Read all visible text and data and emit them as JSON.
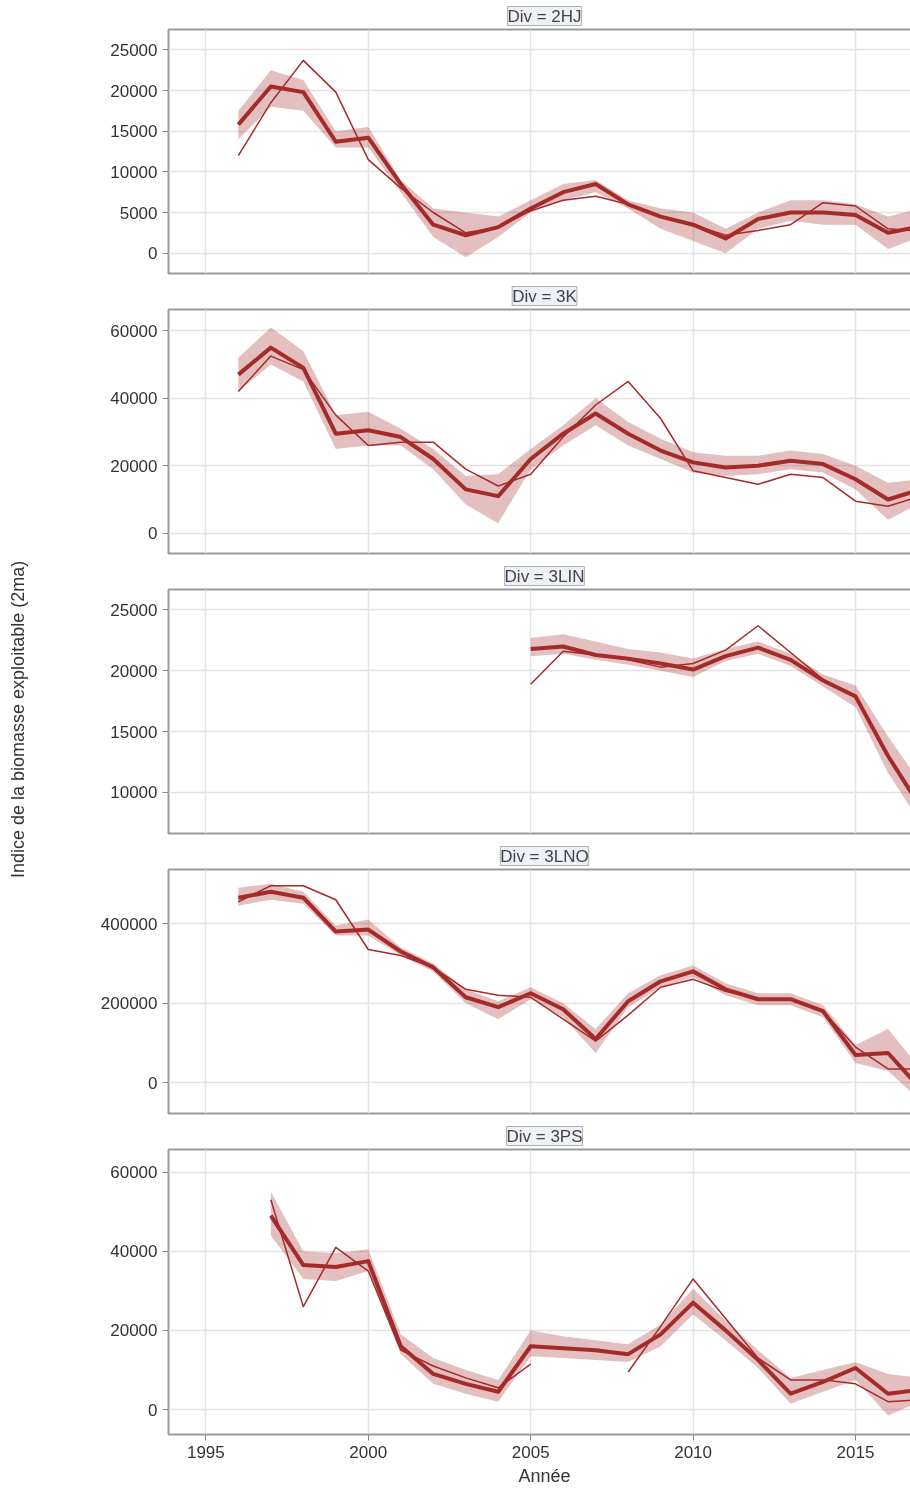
{
  "chart_data": [
    {
      "type": "line",
      "title": "Div = 2HJ",
      "x": [
        1996,
        1997,
        1998,
        1999,
        2000,
        2001,
        2002,
        2003,
        2004,
        2005,
        2006,
        2007,
        2008,
        2009,
        2010,
        2011,
        2012,
        2013,
        2014,
        2015,
        2016,
        2017
      ],
      "xlim": [
        1993.85,
        2017
      ],
      "xticks": [
        1995,
        2000,
        2005,
        2010,
        2015
      ],
      "ylim": [
        -2500,
        27500
      ],
      "yticks": [
        0,
        5000,
        10000,
        15000,
        20000,
        25000
      ],
      "grid": true,
      "tick_labels": "y",
      "series": [
        {
          "color": "#a52a2a",
          "values": [
            15800,
            20500,
            19800,
            13700,
            14200,
            8500,
            3500,
            2200,
            3200,
            5500,
            7500,
            8500,
            6000,
            4500,
            3500,
            1800,
            4200,
            5000,
            5000,
            4700,
            2500,
            3300
          ],
          "lower": [
            14000,
            18000,
            17500,
            13000,
            13000,
            7500,
            2000,
            -500,
            2000,
            5000,
            6500,
            7500,
            5500,
            3000,
            1500,
            0,
            3000,
            4000,
            3500,
            3500,
            500,
            2000
          ],
          "upper": [
            17500,
            22500,
            21300,
            15000,
            15500,
            9000,
            5500,
            5000,
            4500,
            6500,
            8500,
            9000,
            6500,
            5500,
            5000,
            3000,
            5000,
            6500,
            6500,
            6000,
            4500,
            5500
          ]
        },
        {
          "color": "#a52a2a",
          "values": [
            12000,
            18500,
            23700,
            19800,
            11500,
            8000,
            5000,
            2500,
            3200,
            5200,
            6500,
            7000,
            6000,
            4500,
            3500,
            2200,
            2800,
            3500,
            6200,
            5800,
            3000,
            2700
          ]
        }
      ]
    },
    {
      "type": "line",
      "title": "Div = 3K",
      "x": [
        1996,
        1997,
        1998,
        1999,
        2000,
        2001,
        2002,
        2003,
        2004,
        2005,
        2006,
        2007,
        2008,
        2009,
        2010,
        2011,
        2012,
        2013,
        2014,
        2015,
        2016,
        2017
      ],
      "xlim": [
        1993.85,
        2017
      ],
      "xticks": [
        1995,
        2000,
        2005,
        2010,
        2015
      ],
      "ylim": [
        -6000,
        66300
      ],
      "yticks": [
        0,
        20000,
        40000,
        60000
      ],
      "grid": true,
      "tick_labels": "y",
      "series": [
        {
          "color": "#a52a2a",
          "values": [
            47000,
            55000,
            49000,
            29500,
            30500,
            28500,
            22000,
            13000,
            11000,
            22000,
            29500,
            35500,
            29500,
            24500,
            21000,
            19500,
            20000,
            21500,
            20500,
            16000,
            10000,
            13000
          ],
          "lower": [
            42000,
            50000,
            45000,
            25000,
            26000,
            26000,
            19000,
            8500,
            3000,
            19000,
            26000,
            32000,
            26000,
            22000,
            18000,
            17000,
            17500,
            19000,
            18000,
            13000,
            4000,
            9000
          ],
          "upper": [
            52000,
            61000,
            54000,
            35000,
            36000,
            31000,
            25000,
            17000,
            17500,
            25000,
            32000,
            40000,
            33000,
            28000,
            24000,
            23000,
            23000,
            24500,
            23500,
            20000,
            15000,
            16000
          ]
        },
        {
          "color": "#a52a2a",
          "values": [
            42000,
            52500,
            48500,
            35000,
            26000,
            27000,
            27000,
            19000,
            14000,
            17500,
            28500,
            38000,
            45000,
            34000,
            18500,
            16500,
            14500,
            17500,
            16500,
            9500,
            8000,
            11000
          ]
        }
      ]
    },
    {
      "type": "line",
      "title": "Div = 3LIN",
      "ylabel": "Indice de la biomasse exploitable (2ma)",
      "xlim": [
        1993.85,
        2017
      ],
      "xticks": [
        1995,
        2000,
        2005,
        2010,
        2015
      ],
      "ylim": [
        6630,
        26680
      ],
      "yticks": [
        10000,
        15000,
        20000,
        25000
      ],
      "grid": true,
      "tick_labels": "y",
      "series": [
        {
          "color": "#a52a2a",
          "x": [
            2005,
            2006,
            2007,
            2008,
            2009,
            2010,
            2011,
            2012,
            2013,
            2014,
            2015,
            2016,
            2017
          ],
          "values": [
            21800,
            22000,
            21300,
            21000,
            20600,
            20100,
            21200,
            21900,
            20900,
            19200,
            17900,
            13000,
            8800
          ],
          "lower": [
            21200,
            21400,
            20900,
            20500,
            20000,
            19500,
            20800,
            21400,
            20400,
            18700,
            17000,
            11600,
            7500
          ],
          "upper": [
            22700,
            23000,
            22400,
            21800,
            21500,
            21000,
            21800,
            22400,
            21400,
            19700,
            18800,
            14600,
            10800
          ]
        },
        {
          "color": "#a52a2a",
          "x": [
            2005,
            2006,
            2007,
            2008,
            2009,
            2010,
            2011,
            2012,
            2013,
            2014,
            2015,
            2016,
            2017
          ],
          "values": [
            18900,
            21600,
            21300,
            20900,
            20300,
            20600,
            21700,
            23700,
            21500,
            19300,
            17900,
            13000,
            8800
          ]
        }
      ]
    },
    {
      "type": "line",
      "title": "Div = 3LNO",
      "x": [
        1996,
        1997,
        1998,
        1999,
        2000,
        2001,
        2002,
        2003,
        2004,
        2005,
        2006,
        2007,
        2008,
        2009,
        2010,
        2011,
        2012,
        2013,
        2014,
        2015,
        2016,
        2017
      ],
      "xlim": [
        1993.85,
        2017
      ],
      "xticks": [
        1995,
        2000,
        2005,
        2010,
        2015
      ],
      "ylim": [
        -77000,
        535900
      ],
      "yticks": [
        0,
        200000,
        400000
      ],
      "grid": true,
      "tick_labels": "y",
      "series": [
        {
          "color": "#a52a2a",
          "values": [
            465000,
            480000,
            465000,
            380000,
            385000,
            330000,
            290000,
            215000,
            190000,
            225000,
            185000,
            110000,
            205000,
            255000,
            280000,
            235000,
            210000,
            210000,
            180000,
            70000,
            75000,
            -15000
          ],
          "lower": [
            445000,
            460000,
            450000,
            370000,
            370000,
            320000,
            280000,
            200000,
            160000,
            210000,
            165000,
            75000,
            190000,
            240000,
            265000,
            220000,
            195000,
            195000,
            165000,
            50000,
            30000,
            -45000
          ],
          "upper": [
            490000,
            500000,
            480000,
            395000,
            410000,
            340000,
            300000,
            235000,
            205000,
            240000,
            200000,
            135000,
            225000,
            270000,
            295000,
            250000,
            225000,
            225000,
            195000,
            95000,
            135000,
            35000
          ]
        },
        {
          "color": "#a52a2a",
          "values": [
            455000,
            495000,
            495000,
            460000,
            335000,
            320000,
            290000,
            235000,
            220000,
            215000,
            160000,
            105000,
            170000,
            240000,
            260000,
            230000,
            210000,
            210000,
            180000,
            90000,
            35000,
            35000
          ]
        }
      ]
    },
    {
      "type": "line",
      "title": "Div = 3PS",
      "xlabel": "Année",
      "xlim": [
        1993.85,
        2017
      ],
      "xticks": [
        1995,
        2000,
        2005,
        2010,
        2015
      ],
      "ylim": [
        -6300,
        65700
      ],
      "yticks": [
        0,
        20000,
        40000,
        60000
      ],
      "grid": true,
      "series": [
        {
          "color": "#a52a2a",
          "x": [
            1997,
            1998,
            1999,
            2000,
            2001,
            2002,
            2003,
            2004,
            2005,
            2006,
            2007,
            2008,
            2009,
            2010,
            2011,
            2012,
            2013,
            2014,
            2015,
            2016,
            2017
          ],
          "values": [
            49000,
            36500,
            36000,
            37500,
            16000,
            9000,
            6500,
            4500,
            16000,
            15500,
            15000,
            14000,
            19000,
            27000,
            20000,
            12500,
            4000,
            7000,
            10500,
            4000,
            5000
          ],
          "lower": [
            44000,
            33000,
            32500,
            35000,
            14000,
            6500,
            4000,
            2000,
            13500,
            13000,
            12500,
            12000,
            16000,
            24000,
            17500,
            10500,
            1500,
            4500,
            7500,
            -1500,
            2000
          ],
          "upper": [
            55000,
            40000,
            39500,
            40500,
            19000,
            13000,
            10000,
            7500,
            20000,
            18500,
            17500,
            16500,
            21500,
            30500,
            22500,
            15000,
            8000,
            10000,
            12000,
            9000,
            8000
          ]
        },
        {
          "color": "#a52a2a",
          "x": [
            1997,
            1998,
            1999,
            2000,
            2001,
            2002,
            2003,
            2004,
            2005,
            2006,
            2007,
            2008,
            2009,
            2010,
            2011,
            2012,
            2013,
            2014,
            2015,
            2016,
            2017
          ],
          "values": [
            53000,
            26000,
            41000,
            35000,
            15000,
            11000,
            8000,
            5500,
            11500,
            null,
            null,
            9500,
            21000,
            33000,
            23000,
            13000,
            7500,
            7500,
            6500,
            2000,
            2500
          ]
        }
      ]
    }
  ]
}
